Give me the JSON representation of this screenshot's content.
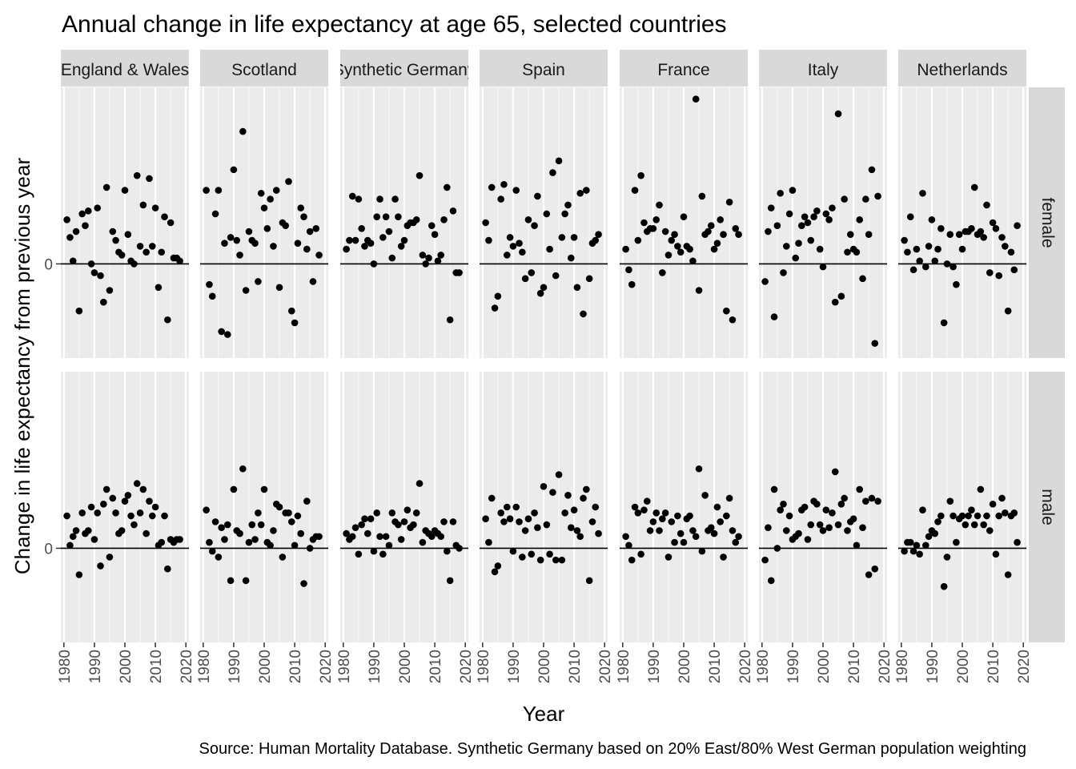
{
  "chart_data": {
    "type": "scatter",
    "title": "Annual change in life expectancy at age 65, selected countries",
    "xlabel": "Year",
    "ylabel": "Change in life expectancy from previous year",
    "caption": "Source: Human Mortality Database. Synthetic Germany based on 20% East/80% West German population weighting",
    "xlim": [
      1979,
      2021
    ],
    "ylim": [
      -0.32,
      0.6
    ],
    "x_ticks": [
      "1980",
      "1990",
      "2000",
      "2010",
      "2020"
    ],
    "y_ticks": [
      "0"
    ],
    "zero_line": true,
    "grid": true,
    "facet_columns": [
      "England & Wales",
      "Scotland",
      "Synthetic Germany",
      "Spain",
      "France",
      "Italy",
      "Netherlands"
    ],
    "facet_rows": [
      "female",
      "male"
    ],
    "panels": [
      {
        "country": "England & Wales",
        "sex": "female",
        "x": [
          1981,
          1982,
          1983,
          1984,
          1985,
          1986,
          1987,
          1988,
          1989,
          1990,
          1991,
          1992,
          1993,
          1994,
          1995,
          1996,
          1997,
          1998,
          1999,
          2000,
          2001,
          2002,
          2003,
          2004,
          2005,
          2006,
          2007,
          2008,
          2009,
          2010,
          2011,
          2012,
          2013,
          2014,
          2015,
          2016,
          2017,
          2018
        ],
        "y": [
          0.15,
          0.09,
          0.01,
          0.11,
          -0.16,
          0.17,
          0.13,
          0.18,
          0,
          -0.03,
          0.19,
          -0.04,
          -0.13,
          0.26,
          -0.09,
          0.11,
          0.08,
          0.04,
          0.03,
          0.25,
          0.1,
          0.01,
          0,
          0.3,
          0.06,
          0.2,
          0.04,
          0.29,
          0.06,
          0.19,
          -0.08,
          0.04,
          0.16,
          -0.19,
          0.14,
          0.02,
          0.02,
          0.01
        ]
      },
      {
        "country": "Scotland",
        "sex": "female",
        "x": [
          1981,
          1982,
          1983,
          1984,
          1985,
          1986,
          1987,
          1988,
          1989,
          1990,
          1991,
          1992,
          1993,
          1994,
          1995,
          1996,
          1997,
          1998,
          1999,
          2000,
          2001,
          2002,
          2003,
          2004,
          2005,
          2006,
          2007,
          2008,
          2009,
          2010,
          2011,
          2012,
          2013,
          2014,
          2015,
          2016,
          2017,
          2018
        ],
        "y": [
          0.25,
          -0.07,
          -0.11,
          0.17,
          0.25,
          -0.23,
          0.07,
          -0.24,
          0.09,
          0.32,
          0.08,
          0.03,
          0.45,
          -0.09,
          0.11,
          0.08,
          0.07,
          -0.06,
          0.24,
          0.19,
          0.12,
          0.22,
          0.06,
          0.25,
          -0.08,
          0.14,
          0.13,
          0.28,
          -0.16,
          -0.2,
          0.07,
          0.19,
          0.16,
          0.05,
          0.11,
          -0.06,
          0.12,
          0.03
        ]
      },
      {
        "country": "Synthetic Germany",
        "sex": "female",
        "x": [
          1981,
          1982,
          1983,
          1984,
          1985,
          1986,
          1987,
          1988,
          1989,
          1990,
          1991,
          1992,
          1993,
          1994,
          1995,
          1996,
          1997,
          1998,
          1999,
          2000,
          2001,
          2002,
          2003,
          2004,
          2005,
          2006,
          2007,
          2008,
          2009,
          2010,
          2011,
          2012,
          2013,
          2014,
          2015,
          2016,
          2017,
          2018
        ],
        "y": [
          0.05,
          0.08,
          0.23,
          0.08,
          0.22,
          0.12,
          0.06,
          0.08,
          0.07,
          0,
          0.16,
          0.22,
          0.09,
          0.16,
          0.11,
          0.02,
          0.22,
          0.16,
          0.06,
          0.08,
          0.13,
          0.14,
          0.14,
          0.15,
          0.3,
          0.03,
          0,
          0.02,
          0.13,
          0.1,
          0.01,
          0.03,
          0.15,
          0.26,
          -0.19,
          0.18,
          -0.03,
          -0.03
        ]
      },
      {
        "country": "Spain",
        "sex": "female",
        "x": [
          1981,
          1982,
          1983,
          1984,
          1985,
          1986,
          1987,
          1988,
          1989,
          1990,
          1991,
          1992,
          1993,
          1994,
          1995,
          1996,
          1997,
          1998,
          1999,
          2000,
          2001,
          2002,
          2003,
          2004,
          2005,
          2006,
          2007,
          2008,
          2009,
          2010,
          2011,
          2012,
          2013,
          2014,
          2015,
          2016,
          2017,
          2018
        ],
        "y": [
          0.14,
          0.08,
          0.26,
          -0.15,
          -0.11,
          0.22,
          0.27,
          0.03,
          0.09,
          0.06,
          0.25,
          0.07,
          0.04,
          -0.05,
          0.15,
          -0.03,
          0.13,
          0.23,
          -0.1,
          -0.08,
          0.17,
          0.05,
          0.31,
          -0.04,
          0.35,
          0.09,
          0.17,
          0.2,
          0.02,
          0.09,
          -0.08,
          0.24,
          -0.17,
          0.25,
          -0.05,
          0.07,
          0.08,
          0.1
        ]
      },
      {
        "country": "France",
        "sex": "female",
        "x": [
          1981,
          1982,
          1983,
          1984,
          1985,
          1986,
          1987,
          1988,
          1989,
          1990,
          1991,
          1992,
          1993,
          1994,
          1995,
          1996,
          1997,
          1998,
          1999,
          2000,
          2001,
          2002,
          2003,
          2004,
          2005,
          2006,
          2007,
          2008,
          2009,
          2010,
          2011,
          2012,
          2013,
          2014,
          2015,
          2016,
          2017,
          2018
        ],
        "y": [
          0.05,
          -0.02,
          -0.07,
          0.25,
          0.08,
          0.3,
          0.14,
          0.11,
          0.12,
          0.12,
          0.15,
          0.2,
          -0.03,
          0.11,
          0.03,
          0.08,
          0.1,
          0.06,
          0.04,
          0.16,
          0.06,
          0.05,
          0.01,
          0.56,
          -0.09,
          0.23,
          0.1,
          0.11,
          0.13,
          0.05,
          0.07,
          0.15,
          0.1,
          -0.16,
          0.21,
          -0.19,
          0.12,
          0.1
        ]
      },
      {
        "country": "Italy",
        "sex": "female",
        "x": [
          1981,
          1982,
          1983,
          1984,
          1985,
          1986,
          1987,
          1988,
          1989,
          1990,
          1991,
          1992,
          1993,
          1994,
          1995,
          1996,
          1997,
          1998,
          1999,
          2000,
          2001,
          2002,
          2003,
          2004,
          2005,
          2006,
          2007,
          2008,
          2009,
          2010,
          2011,
          2012,
          2013,
          2014,
          2015,
          2016,
          2017,
          2018
        ],
        "y": [
          -0.06,
          0.11,
          0.19,
          -0.18,
          0.13,
          0.24,
          -0.03,
          0.06,
          0.17,
          0.25,
          0.02,
          0.07,
          0.13,
          0.16,
          0.14,
          0.08,
          0.16,
          0.18,
          0.05,
          -0.01,
          0.17,
          0.15,
          0.19,
          -0.13,
          0.51,
          -0.11,
          0.22,
          0.04,
          0.1,
          0.05,
          0.04,
          0.15,
          -0.05,
          0.22,
          0.1,
          0.32,
          -0.27,
          0.23
        ]
      },
      {
        "country": "Netherlands",
        "sex": "female",
        "x": [
          1981,
          1982,
          1983,
          1984,
          1985,
          1986,
          1987,
          1988,
          1989,
          1990,
          1991,
          1992,
          1993,
          1994,
          1995,
          1996,
          1997,
          1998,
          1999,
          2000,
          2001,
          2002,
          2003,
          2004,
          2005,
          2006,
          2007,
          2008,
          2009,
          2010,
          2011,
          2012,
          2013,
          2014,
          2015,
          2016,
          2017,
          2018
        ],
        "y": [
          0.08,
          0.04,
          0.16,
          -0.02,
          0.05,
          0.01,
          0.24,
          -0.01,
          0.06,
          0.15,
          0.01,
          0.05,
          0.12,
          -0.2,
          0,
          0.1,
          -0.01,
          -0.07,
          0.1,
          0.05,
          0.11,
          0.11,
          0.12,
          0.26,
          0.1,
          0.11,
          0.09,
          0.2,
          -0.03,
          0.14,
          0.12,
          -0.04,
          0.09,
          0.06,
          -0.16,
          0.04,
          -0.02,
          0.13
        ]
      },
      {
        "country": "England & Wales",
        "sex": "male",
        "x": [
          1981,
          1982,
          1983,
          1984,
          1985,
          1986,
          1987,
          1988,
          1989,
          1990,
          1991,
          1992,
          1993,
          1994,
          1995,
          1996,
          1997,
          1998,
          1999,
          2000,
          2001,
          2002,
          2003,
          2004,
          2005,
          2006,
          2007,
          2008,
          2009,
          2010,
          2011,
          2012,
          2013,
          2014,
          2015,
          2016,
          2017,
          2018
        ],
        "y": [
          0.11,
          0.01,
          0.04,
          0.06,
          -0.09,
          0.12,
          0.05,
          0.06,
          0.14,
          0.03,
          0.12,
          -0.06,
          0.15,
          0.2,
          -0.03,
          0.17,
          0.12,
          0.05,
          0.06,
          0.16,
          0.18,
          0.11,
          0.08,
          0.22,
          0.12,
          0.2,
          0.05,
          0.16,
          0.11,
          0.14,
          0.01,
          0.02,
          0.11,
          -0.07,
          0.03,
          0.02,
          0.03,
          0.03
        ]
      },
      {
        "country": "Scotland",
        "sex": "male",
        "x": [
          1981,
          1982,
          1983,
          1984,
          1985,
          1986,
          1987,
          1988,
          1989,
          1990,
          1991,
          1992,
          1993,
          1994,
          1995,
          1996,
          1997,
          1998,
          1999,
          2000,
          2001,
          2002,
          2003,
          2004,
          2005,
          2006,
          2007,
          2008,
          2009,
          2010,
          2011,
          2012,
          2013,
          2014,
          2015,
          2016,
          2017,
          2018
        ],
        "y": [
          0.13,
          0.02,
          -0.01,
          0.09,
          -0.03,
          0.07,
          0.03,
          0.08,
          -0.11,
          0.2,
          0.06,
          0.05,
          0.27,
          -0.11,
          0.02,
          0.08,
          0.03,
          0.12,
          0.08,
          0.2,
          0.02,
          0.01,
          0.06,
          0.15,
          0.14,
          -0.03,
          0.12,
          0.12,
          0.09,
          0.01,
          0.11,
          0.05,
          -0.12,
          0.16,
          0,
          0.03,
          0.04,
          0.04
        ]
      },
      {
        "country": "Synthetic Germany",
        "sex": "male",
        "x": [
          1981,
          1982,
          1983,
          1984,
          1985,
          1986,
          1987,
          1988,
          1989,
          1990,
          1991,
          1992,
          1993,
          1994,
          1995,
          1996,
          1997,
          1998,
          1999,
          2000,
          2001,
          2002,
          2003,
          2004,
          2005,
          2006,
          2007,
          2008,
          2009,
          2010,
          2011,
          2012,
          2013,
          2014,
          2015,
          2016,
          2017,
          2018
        ],
        "y": [
          0.05,
          0.03,
          0.04,
          0.07,
          -0.02,
          0.08,
          0.1,
          0.05,
          0.1,
          -0.01,
          0.12,
          0.04,
          -0.02,
          0.04,
          0.01,
          0.12,
          0.09,
          0.08,
          0.03,
          0.09,
          0.13,
          0.07,
          0.08,
          0.12,
          0.22,
          0.02,
          0.06,
          0.05,
          0.04,
          0.06,
          0.05,
          0.04,
          0.09,
          -0.01,
          -0.11,
          0.09,
          0.01,
          0
        ]
      },
      {
        "country": "Spain",
        "sex": "male",
        "x": [
          1981,
          1982,
          1983,
          1984,
          1985,
          1986,
          1987,
          1988,
          1989,
          1990,
          1991,
          1992,
          1993,
          1994,
          1995,
          1996,
          1997,
          1998,
          1999,
          2000,
          2001,
          2002,
          2003,
          2004,
          2005,
          2006,
          2007,
          2008,
          2009,
          2010,
          2011,
          2012,
          2013,
          2014,
          2015,
          2016,
          2017,
          2018
        ],
        "y": [
          0.1,
          0.02,
          0.17,
          -0.08,
          -0.06,
          0.12,
          0.09,
          0.14,
          0.1,
          -0.01,
          0.14,
          0.09,
          -0.03,
          0.06,
          0.1,
          -0.02,
          0.12,
          0.07,
          -0.04,
          0.21,
          0.08,
          -0.02,
          0.19,
          -0.04,
          0.25,
          -0.04,
          0.12,
          0.18,
          0.07,
          0.13,
          0.06,
          0.04,
          0.17,
          0.2,
          -0.11,
          0.09,
          0.14,
          0.05
        ]
      },
      {
        "country": "France",
        "sex": "male",
        "x": [
          1981,
          1982,
          1983,
          1984,
          1985,
          1986,
          1987,
          1988,
          1989,
          1990,
          1991,
          1992,
          1993,
          1994,
          1995,
          1996,
          1997,
          1998,
          1999,
          2000,
          2001,
          2002,
          2003,
          2004,
          2005,
          2006,
          2007,
          2008,
          2009,
          2010,
          2011,
          2012,
          2013,
          2014,
          2015,
          2016,
          2017,
          2018
        ],
        "y": [
          0.04,
          0.01,
          -0.04,
          0.14,
          0.12,
          -0.02,
          0.13,
          0.16,
          0.06,
          0.09,
          0.12,
          0.06,
          0.1,
          0.12,
          -0.03,
          0.09,
          0.02,
          0.11,
          0.05,
          0.02,
          0.1,
          0.11,
          0.06,
          0.04,
          0.27,
          -0.01,
          0.18,
          0.06,
          0.07,
          0.05,
          0.14,
          0.09,
          -0.03,
          0.11,
          0.17,
          0.06,
          0.02,
          0.04
        ]
      },
      {
        "country": "Italy",
        "sex": "male",
        "x": [
          1981,
          1982,
          1983,
          1984,
          1985,
          1986,
          1987,
          1988,
          1989,
          1990,
          1991,
          1992,
          1993,
          1994,
          1995,
          1996,
          1997,
          1998,
          1999,
          2000,
          2001,
          2002,
          2003,
          2004,
          2005,
          2006,
          2007,
          2008,
          2009,
          2010,
          2011,
          2012,
          2013,
          2014,
          2015,
          2016,
          2017,
          2018
        ],
        "y": [
          -0.04,
          0.07,
          -0.11,
          0.2,
          0,
          0.13,
          0.15,
          0.06,
          0.11,
          0.03,
          0.04,
          0.05,
          0.13,
          0.14,
          0.03,
          0.08,
          0.16,
          0.15,
          0.08,
          0.06,
          0.13,
          0.07,
          0.12,
          0.26,
          0.08,
          0.15,
          0.17,
          0.06,
          0.09,
          0.1,
          0.01,
          0.2,
          0.07,
          0.16,
          -0.09,
          0.17,
          -0.07,
          0.16
        ]
      },
      {
        "country": "Netherlands",
        "sex": "male",
        "x": [
          1981,
          1982,
          1983,
          1984,
          1985,
          1986,
          1987,
          1988,
          1989,
          1990,
          1991,
          1992,
          1993,
          1994,
          1995,
          1996,
          1997,
          1998,
          1999,
          2000,
          2001,
          2002,
          2003,
          2004,
          2005,
          2006,
          2007,
          2008,
          2009,
          2010,
          2011,
          2012,
          2013,
          2014,
          2015,
          2016,
          2017,
          2018
        ],
        "y": [
          -0.01,
          0.02,
          0.02,
          -0.01,
          0.01,
          -0.02,
          0.13,
          0.01,
          0.04,
          0.06,
          0.05,
          0.09,
          0.11,
          -0.13,
          -0.03,
          0.16,
          0.11,
          0.02,
          0.1,
          0.11,
          0.08,
          0.11,
          0.13,
          0.08,
          0.11,
          0.2,
          0.08,
          0.11,
          0.06,
          0.15,
          -0.02,
          0.11,
          0.17,
          0.12,
          -0.09,
          0.11,
          0.12,
          0.02
        ]
      }
    ]
  }
}
